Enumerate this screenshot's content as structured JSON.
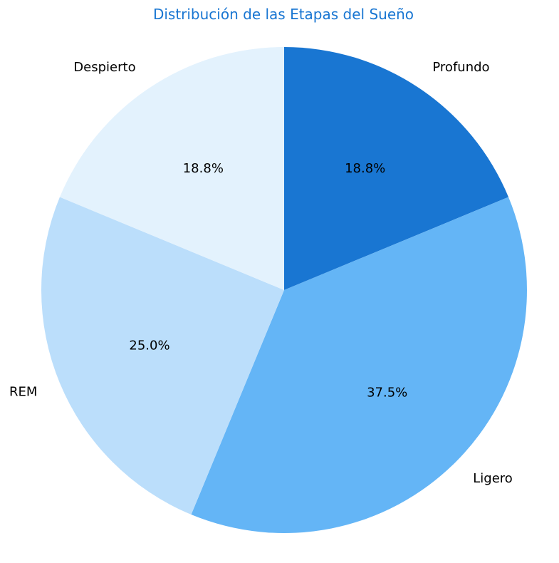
{
  "chart_data": {
    "type": "pie",
    "title": "Distribución de las Etapas del Sueño",
    "start_angle_deg": 90,
    "direction": "clockwise",
    "slices": [
      {
        "label": "Profundo",
        "value": 18.75,
        "pct_label": "18.8%",
        "color": "#1976D2"
      },
      {
        "label": "Ligero",
        "value": 37.5,
        "pct_label": "37.5%",
        "color": "#64B5F6"
      },
      {
        "label": "REM",
        "value": 25.0,
        "pct_label": "25.0%",
        "color": "#BBDEFB"
      },
      {
        "label": "Despierto",
        "value": 18.75,
        "pct_label": "18.8%",
        "color": "#E3F2FD"
      }
    ]
  },
  "colors": {
    "title": "#1976D2",
    "background": "#FFFFFF"
  }
}
